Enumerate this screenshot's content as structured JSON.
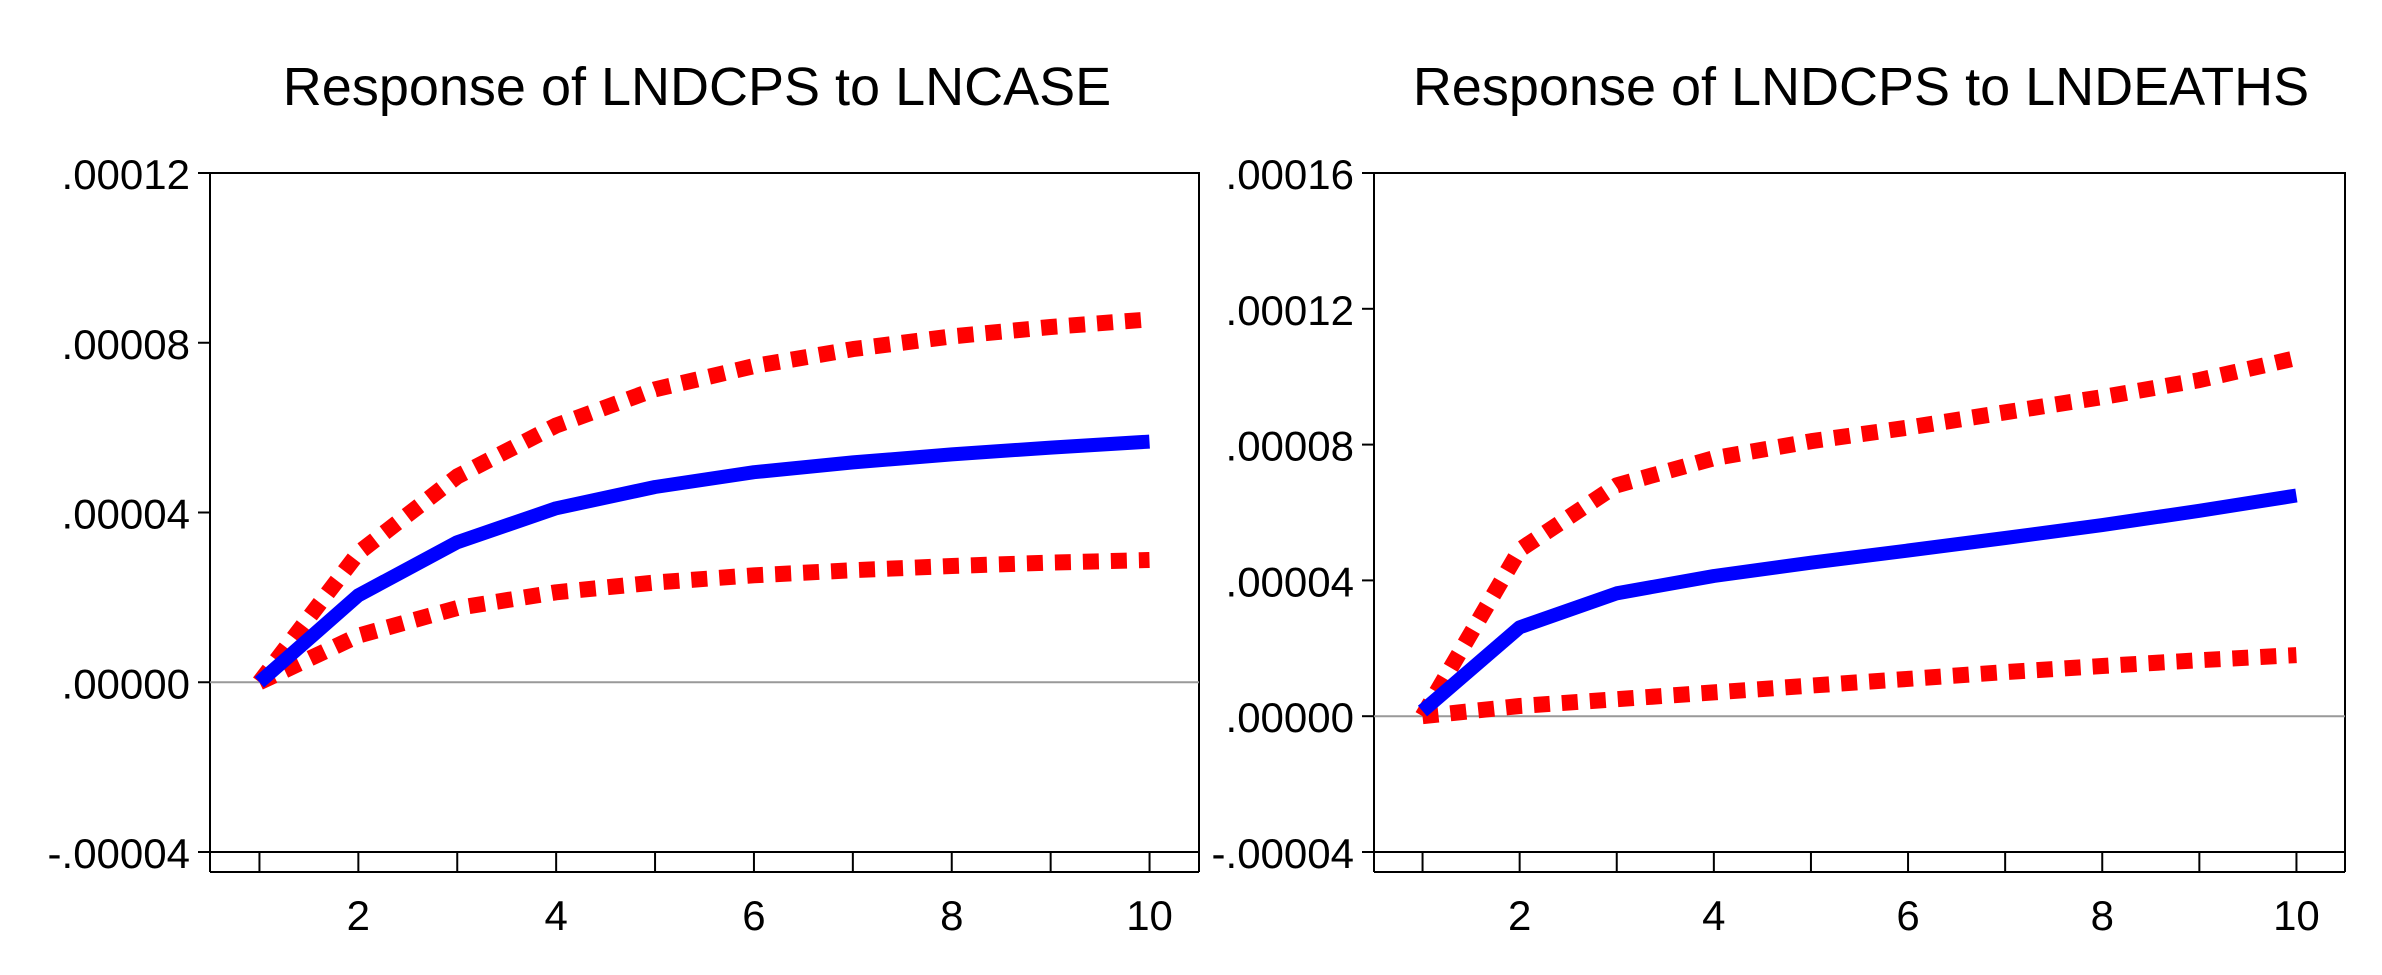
{
  "chart_data": [
    {
      "type": "line",
      "title": "Response of LNDCPS to LNCASE",
      "xlabel": "",
      "ylabel": "",
      "x": [
        1,
        2,
        3,
        4,
        5,
        6,
        7,
        8,
        9,
        10
      ],
      "xlim": [
        0.5,
        10.5
      ],
      "xticks": [
        2,
        4,
        6,
        8,
        10
      ],
      "ylim": [
        -4e-05,
        0.00012
      ],
      "yticks": [
        -4e-05,
        0.0,
        4e-05,
        8e-05,
        0.00012
      ],
      "ytick_labels": [
        "-.00004",
        ".00000",
        ".00004",
        ".00008",
        ".00012"
      ],
      "grid": false,
      "zero_line": true,
      "series": [
        {
          "name": "response",
          "style": "solid",
          "color": "#0000ff",
          "values": [
            0.0,
            2.05e-05,
            3.3e-05,
            4.1e-05,
            4.6e-05,
            4.95e-05,
            5.18e-05,
            5.37e-05,
            5.53e-05,
            5.67e-05
          ]
        },
        {
          "name": "upper band",
          "style": "dotted",
          "color": "#ff0000",
          "values": [
            0.0,
            3.05e-05,
            4.85e-05,
            6.05e-05,
            6.9e-05,
            7.45e-05,
            7.85e-05,
            8.15e-05,
            8.37e-05,
            8.55e-05
          ]
        },
        {
          "name": "lower band",
          "style": "dotted",
          "color": "#ff0000",
          "values": [
            0.0,
            1.1e-05,
            1.75e-05,
            2.12e-05,
            2.35e-05,
            2.52e-05,
            2.64e-05,
            2.74e-05,
            2.82e-05,
            2.88e-05
          ]
        }
      ]
    },
    {
      "type": "line",
      "title": "Response of LNDCPS to LNDEATHS",
      "xlabel": "",
      "ylabel": "",
      "x": [
        1,
        2,
        3,
        4,
        5,
        6,
        7,
        8,
        9,
        10
      ],
      "xlim": [
        0.5,
        10.5
      ],
      "xticks": [
        2,
        4,
        6,
        8,
        10
      ],
      "ylim": [
        -4e-05,
        0.00016
      ],
      "yticks": [
        -4e-05,
        0.0,
        4e-05,
        8e-05,
        0.00012,
        0.00016
      ],
      "ytick_labels": [
        "-.00004",
        ".00000",
        ".00004",
        ".00008",
        ".00012",
        ".00016"
      ],
      "grid": false,
      "zero_line": true,
      "series": [
        {
          "name": "response",
          "style": "solid",
          "color": "#0000ff",
          "values": [
            1.5e-06,
            2.62e-05,
            3.62e-05,
            4.13e-05,
            4.52e-05,
            4.88e-05,
            5.25e-05,
            5.63e-05,
            6.05e-05,
            6.5e-05
          ]
        },
        {
          "name": "upper band",
          "style": "dotted",
          "color": "#ff0000",
          "values": [
            0.0,
            4.9e-05,
            6.8e-05,
            7.6e-05,
            8.1e-05,
            8.5e-05,
            8.95e-05,
            9.4e-05,
            9.9e-05,
            0.0001055
          ]
        },
        {
          "name": "lower band",
          "style": "dotted",
          "color": "#ff0000",
          "values": [
            0.0,
            3e-06,
            5e-06,
            7e-06,
            9e-06,
            1.1e-05,
            1.3e-05,
            1.48e-05,
            1.65e-05,
            1.8e-05
          ]
        }
      ]
    }
  ]
}
